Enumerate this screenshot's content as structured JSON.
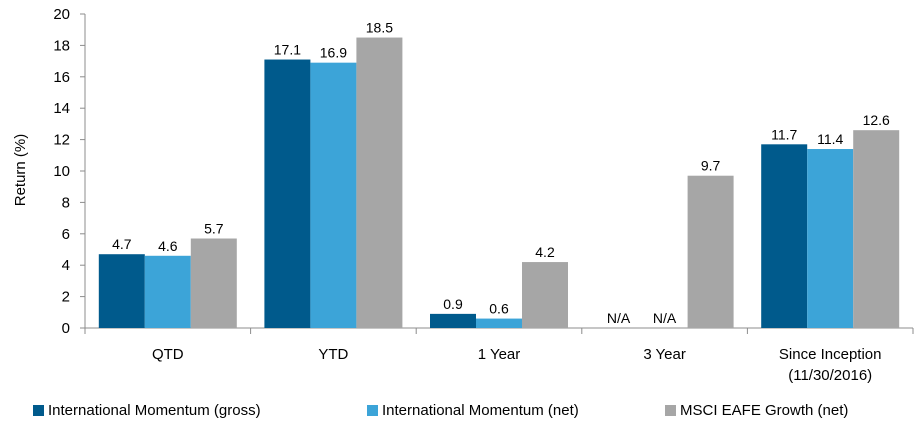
{
  "chart_data": {
    "type": "bar",
    "ylabel": "Return (%)",
    "xlabel": "",
    "ylim": [
      0,
      20
    ],
    "yticks": [
      "0",
      "2",
      "4",
      "6",
      "8",
      "10",
      "12",
      "14",
      "16",
      "18",
      "20"
    ],
    "categories": [
      [
        "QTD"
      ],
      [
        "YTD"
      ],
      [
        "1 Year"
      ],
      [
        "3 Year"
      ],
      [
        "Since Inception",
        "(11/30/2016)"
      ]
    ],
    "series": [
      {
        "name": "International Momentum (gross)",
        "color": "#005a8c",
        "values": [
          4.7,
          17.1,
          0.9,
          null,
          11.7
        ],
        "labels": [
          "4.7",
          "17.1",
          "0.9",
          "N/A",
          "11.7"
        ]
      },
      {
        "name": "International Momentum (net)",
        "color": "#3ca4d8",
        "values": [
          4.6,
          16.9,
          0.6,
          null,
          11.4
        ],
        "labels": [
          "4.6",
          "16.9",
          "0.6",
          "N/A",
          "11.4"
        ]
      },
      {
        "name": "MSCI EAFE Growth (net)",
        "color": "#a6a6a6",
        "values": [
          5.7,
          18.5,
          4.2,
          9.7,
          12.6
        ],
        "labels": [
          "5.7",
          "18.5",
          "4.2",
          "9.7",
          "12.6"
        ]
      }
    ],
    "grid": false,
    "legend_position": "bottom"
  }
}
